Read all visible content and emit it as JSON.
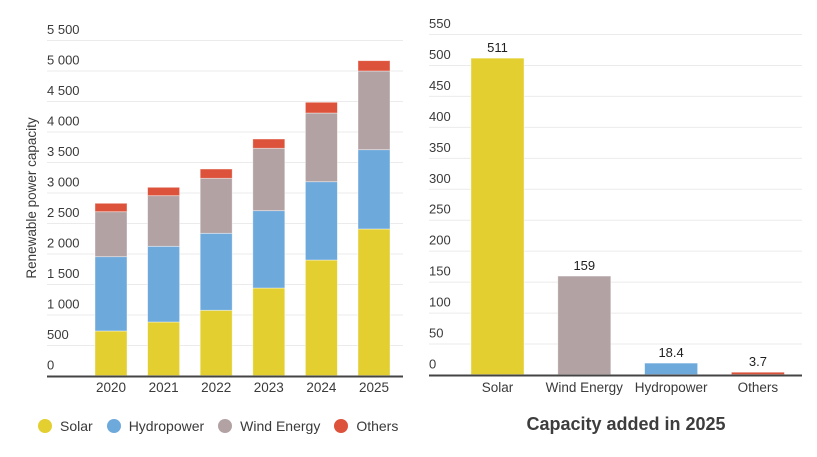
{
  "colors": {
    "Solar": "#e3cf30",
    "Hydropower": "#6ea9dc",
    "Wind Energy": "#b3a2a3",
    "Others": "#dd523a",
    "grid": "#ebebeb",
    "axis": "#444444"
  },
  "chart_data": [
    {
      "type": "bar",
      "stacked": true,
      "title": "",
      "xlabel": "",
      "ylabel": "Renewable power capacity",
      "categories": [
        "2020",
        "2021",
        "2022",
        "2023",
        "2024",
        "2025"
      ],
      "series": [
        {
          "name": "Solar",
          "values": [
            730,
            877,
            1069,
            1434,
            1893,
            2402
          ]
        },
        {
          "name": "Hydropower",
          "values": [
            1218,
            1241,
            1262,
            1268,
            1284,
            1300
          ]
        },
        {
          "name": "Wind Energy",
          "values": [
            737,
            830,
            902,
            1023,
            1126,
            1290
          ]
        },
        {
          "name": "Others",
          "values": [
            138,
            137,
            152,
            152,
            176,
            169
          ]
        }
      ],
      "ylim": [
        0,
        5500
      ],
      "yticks": [
        0,
        500,
        1000,
        1500,
        2000,
        2500,
        3000,
        3500,
        4000,
        4500,
        5000,
        5500
      ],
      "ytick_labels": [
        "0",
        "500",
        "1 000",
        "1 500",
        "2 000",
        "2 500",
        "3 000",
        "3 500",
        "4 000",
        "4 500",
        "5 000",
        "5 500"
      ],
      "grid": true,
      "legend": {
        "placement": "bottom",
        "entries": [
          "Solar",
          "Hydropower",
          "Wind Energy",
          "Others"
        ]
      }
    },
    {
      "type": "bar",
      "title": "Capacity added in 2025",
      "xlabel": "",
      "ylabel": "",
      "categories": [
        "Solar",
        "Wind Energy",
        "Hydropower",
        "Others"
      ],
      "values": [
        511,
        159,
        18.4,
        3.7
      ],
      "data_labels": [
        "511",
        "159",
        "18.4",
        "3.7"
      ],
      "ylim": [
        0,
        550
      ],
      "yticks": [
        0,
        50,
        100,
        150,
        200,
        250,
        300,
        350,
        400,
        450,
        500,
        550
      ],
      "ytick_labels": [
        "0",
        "50",
        "100",
        "150",
        "200",
        "250",
        "300",
        "350",
        "400",
        "450",
        "500",
        "550"
      ],
      "grid": true,
      "title_placement": "bottom"
    }
  ]
}
